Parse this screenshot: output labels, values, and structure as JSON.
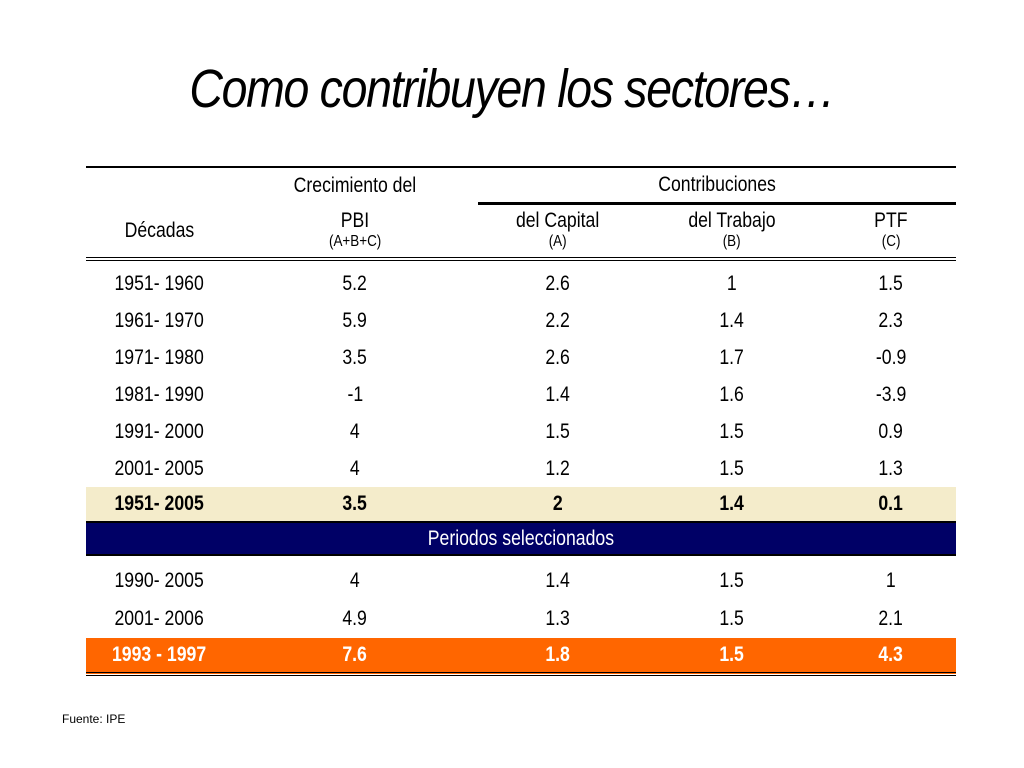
{
  "title": "Como contribuyen los sectores…",
  "table": {
    "header": {
      "crecimiento_line1": "Crecimiento del",
      "crecimiento_line2": "PBI",
      "crecimiento_formula": "(A+B+C)",
      "contribuciones": "Contribuciones",
      "decadas": "Décadas",
      "capital": "del Capital",
      "capital_code": "(A)",
      "trabajo": "del Trabajo",
      "trabajo_code": "(B)",
      "ptf": "PTF",
      "ptf_code": "(C)"
    },
    "rows": [
      {
        "decada": "1951- 1960",
        "pbi": "5.2",
        "capital": "2.6",
        "trabajo": "1",
        "ptf": "1.5"
      },
      {
        "decada": "1961- 1970",
        "pbi": "5.9",
        "capital": "2.2",
        "trabajo": "1.4",
        "ptf": "2.3"
      },
      {
        "decada": "1971- 1980",
        "pbi": "3.5",
        "capital": "2.6",
        "trabajo": "1.7",
        "ptf": "-0.9"
      },
      {
        "decada": "1981- 1990",
        "pbi": "-1",
        "capital": "1.4",
        "trabajo": "1.6",
        "ptf": "-3.9"
      },
      {
        "decada": "1991- 2000",
        "pbi": "4",
        "capital": "1.5",
        "trabajo": "1.5",
        "ptf": "0.9"
      },
      {
        "decada": "2001- 2005",
        "pbi": "4",
        "capital": "1.2",
        "trabajo": "1.5",
        "ptf": "1.3"
      }
    ],
    "total": {
      "decada": "1951- 2005",
      "pbi": "3.5",
      "capital": "2",
      "trabajo": "1.4",
      "ptf": "0.1"
    },
    "section_label": "Periodos seleccionados",
    "selected": [
      {
        "decada": "1990- 2005",
        "pbi": "4",
        "capital": "1.4",
        "trabajo": "1.5",
        "ptf": "1"
      },
      {
        "decada": "2001- 2006",
        "pbi": "4.9",
        "capital": "1.3",
        "trabajo": "1.5",
        "ptf": "2.1"
      }
    ],
    "highlight": {
      "decada": "1993 - 1997",
      "pbi": "7.6",
      "capital": "1.8",
      "trabajo": "1.5",
      "ptf": "4.3"
    }
  },
  "footnote": "Fuente: IPE",
  "colors": {
    "total_row_bg": "#f4eccb",
    "section_bg": "#000066",
    "highlight_bg": "#ff6600"
  }
}
